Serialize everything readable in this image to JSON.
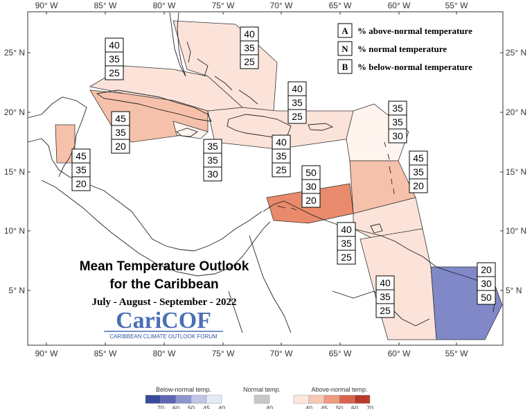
{
  "map": {
    "lon_ticks": [
      "90° W",
      "85° W",
      "80° W",
      "75° W",
      "70° W",
      "65° W",
      "60° W",
      "55° W"
    ],
    "lat_ticks": [
      "25° N",
      "20° N",
      "15° N",
      "10° N",
      "5° N"
    ],
    "legend": [
      {
        "key": "A",
        "label": "% above-normal temperature"
      },
      {
        "key": "N",
        "label": "% normal temperature"
      },
      {
        "key": "B",
        "label": "% below-normal temperature"
      }
    ],
    "title_line1": "Mean Temperature Outlook",
    "title_line2": "for the Caribbean",
    "subtitle": "July - August - September - 2022",
    "logo_text": "CariCOF",
    "logo_sub": "CARIBBEAN CLIMATE OUTLOOK FORUM",
    "regions": [
      {
        "name": "bahamas",
        "above": 40,
        "normal": 35,
        "below": 25,
        "color": "#fbe3da"
      },
      {
        "name": "west-cuba",
        "above": 40,
        "normal": 35,
        "below": 25,
        "color": "#fbe3da"
      },
      {
        "name": "east-cuba-jamaica",
        "above": 45,
        "normal": 35,
        "below": 20,
        "color": "#f6c1aa"
      },
      {
        "name": "belize",
        "above": 45,
        "normal": 35,
        "below": 20,
        "color": "#f6c1aa"
      },
      {
        "name": "cayman",
        "above": 35,
        "normal": 35,
        "below": 30,
        "color": "#fff4ee"
      },
      {
        "name": "hispaniola-pr",
        "above": 40,
        "normal": 35,
        "below": 25,
        "color": "#fbe3da"
      },
      {
        "name": "hispaniola-south",
        "above": 40,
        "normal": 35,
        "below": 25,
        "color": "#fbe3da"
      },
      {
        "name": "northern-leewards",
        "above": 35,
        "normal": 35,
        "below": 30,
        "color": "#fff4ee"
      },
      {
        "name": "eastern-caribbean",
        "above": 45,
        "normal": 35,
        "below": 20,
        "color": "#f6c1aa"
      },
      {
        "name": "abc-islands",
        "above": 50,
        "normal": 30,
        "below": 20,
        "color": "#e98a6c"
      },
      {
        "name": "trinidad",
        "above": 40,
        "normal": 35,
        "below": 25,
        "color": "#fbe3da"
      },
      {
        "name": "guyana",
        "above": 40,
        "normal": 35,
        "below": 25,
        "color": "#fbe3da"
      },
      {
        "name": "suriname-guiana",
        "above": 20,
        "normal": 30,
        "below": 50,
        "color": "#8088c8"
      }
    ]
  },
  "colorbar": {
    "below_title": "Below-normal temp.",
    "normal_title": "Normal temp.",
    "above_title": "Above-normal temp.",
    "below_labels": [
      "70",
      "60",
      "50",
      "45",
      "40"
    ],
    "normal_labels": [
      "40"
    ],
    "above_labels": [
      "40",
      "45",
      "50",
      "60",
      "70"
    ],
    "below_colors": [
      "#3a4a9a",
      "#5b67b4",
      "#8d95cc",
      "#c0c5e6",
      "#e6e9f6"
    ],
    "normal_colors": [
      "#c8c8c8"
    ],
    "above_colors": [
      "#fde6dd",
      "#f8c8b3",
      "#ee9b7d",
      "#d9624a",
      "#b8392c"
    ]
  }
}
